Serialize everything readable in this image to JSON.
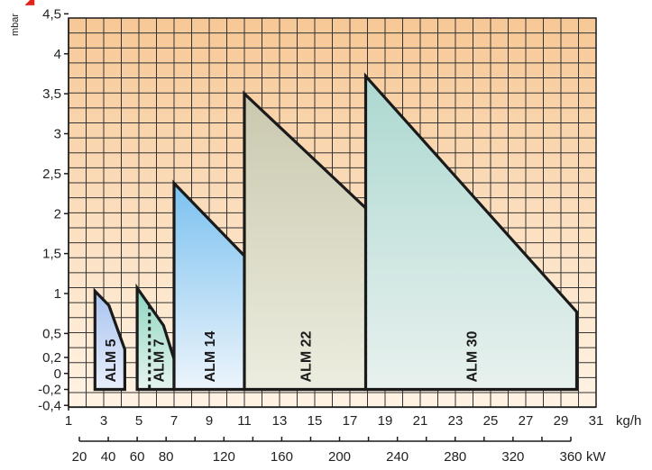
{
  "chart_data": {
    "type": "area",
    "ylabel": "mbar",
    "y_ticks": [
      "4,5",
      "4",
      "3,5",
      "3",
      "2,5",
      "2",
      "1,5",
      "1",
      "0,5",
      "0,2",
      "0",
      "-0,2",
      "-0,4"
    ],
    "x_kg": {
      "unit": "kg/h",
      "range": [
        1,
        31
      ],
      "ticks": [
        "1",
        "3",
        "5",
        "7",
        "9",
        "11",
        "13",
        "15",
        "17",
        "19",
        "21",
        "23",
        "25",
        "27",
        "29",
        "31"
      ]
    },
    "x_kw": {
      "unit": "kW",
      "range": [
        20,
        360
      ],
      "ticks": [
        "20",
        "40",
        "60",
        "80",
        "120",
        "160",
        "200",
        "240",
        "280",
        "320",
        "360"
      ]
    },
    "colors": {
      "grid_top": "#f7c896",
      "grid_bottom": "#fff3e4",
      "outline": "#1a1a1a"
    },
    "series": [
      {
        "name": "ALM 5",
        "fill_top": "#a8c3ef",
        "fill_bottom": "#e8eefb",
        "points": [
          [
            2.5,
            -0.2
          ],
          [
            2.5,
            1.03
          ],
          [
            3.3,
            0.85
          ],
          [
            4.2,
            0.3
          ],
          [
            4.2,
            -0.2
          ]
        ],
        "divider": 4.9
      },
      {
        "name": "ALM 7",
        "fill_top": "#8fd6bf",
        "fill_bottom": "#e5f3ee",
        "points": [
          [
            4.9,
            -0.2
          ],
          [
            4.9,
            1.07
          ],
          [
            6.4,
            0.6
          ],
          [
            7.0,
            0.18
          ],
          [
            7.0,
            -0.2
          ]
        ],
        "divider": 5.6
      },
      {
        "name": "ALM 14",
        "fill_top": "#7bc1f0",
        "fill_bottom": "#ecf4fb",
        "points": [
          [
            7.0,
            -0.2
          ],
          [
            7.0,
            2.38
          ],
          [
            12.2,
            1.2
          ],
          [
            14.0,
            0.17
          ],
          [
            14.0,
            -0.2
          ]
        ],
        "divider": 11.0
      },
      {
        "name": "ALM 22",
        "fill_top": "#cac8ae",
        "fill_bottom": "#eceddf",
        "points": [
          [
            11.0,
            -0.2
          ],
          [
            11.0,
            3.5
          ],
          [
            19.2,
            1.8
          ],
          [
            22.0,
            0.5
          ],
          [
            22.0,
            -0.2
          ]
        ],
        "divider": 17.9
      },
      {
        "name": "ALM 30",
        "fill_top": "#acd8d1",
        "fill_bottom": "#e8f1ee",
        "points": [
          [
            17.9,
            -0.2
          ],
          [
            17.9,
            3.72
          ],
          [
            29.9,
            0.77
          ],
          [
            29.9,
            -0.2
          ]
        ]
      }
    ]
  }
}
